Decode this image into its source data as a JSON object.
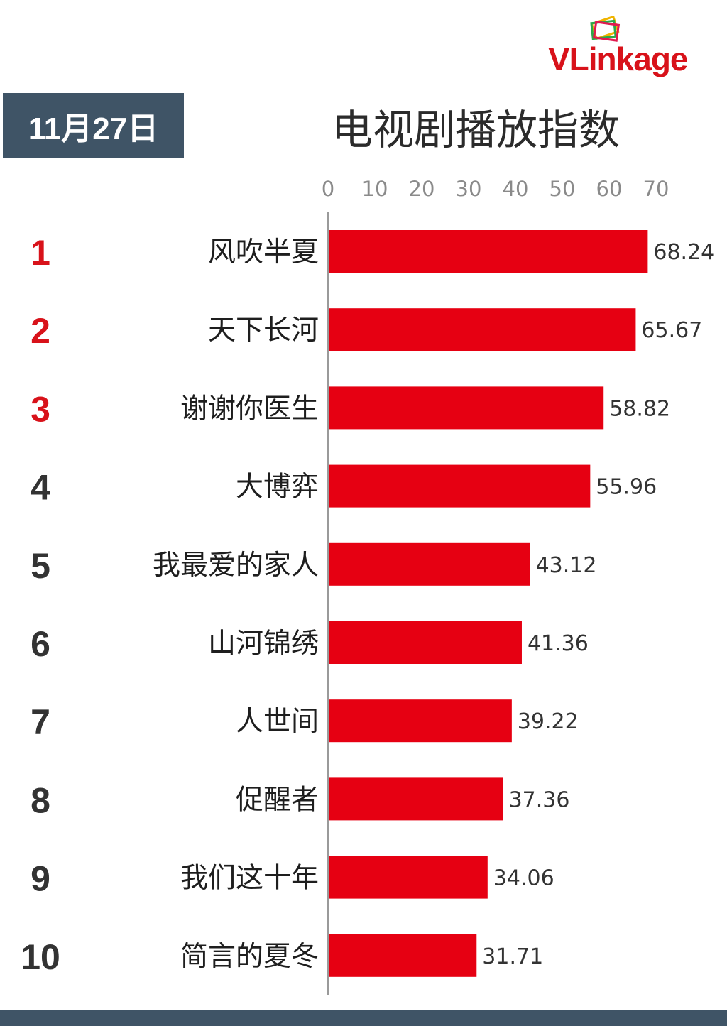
{
  "brand": {
    "name": "VLinkage",
    "colors": {
      "primary_red": "#d8121a",
      "bar_red": "#e60012",
      "slate": "#3f5466"
    }
  },
  "date": "11月27日",
  "chart_data": {
    "type": "bar",
    "orientation": "horizontal",
    "title": "电视剧播放指数",
    "ranks": [
      "1",
      "2",
      "3",
      "4",
      "5",
      "6",
      "7",
      "8",
      "9",
      "10"
    ],
    "categories": [
      "风吹半夏",
      "天下长河",
      "谢谢你医生",
      "大博弈",
      "我最爱的家人",
      "山河锦绣",
      "人世间",
      "促醒者",
      "我们这十年",
      "简言的夏冬"
    ],
    "values": [
      68.24,
      65.67,
      58.82,
      55.96,
      43.12,
      41.36,
      39.22,
      37.36,
      34.06,
      31.71
    ],
    "value_labels": [
      "68.24",
      "65.67",
      "58.82",
      "55.96",
      "43.12",
      "41.36",
      "39.22",
      "37.36",
      "34.06",
      "31.71"
    ],
    "x_ticks": [
      0,
      10,
      20,
      30,
      40,
      50,
      60,
      70
    ],
    "xlim": [
      0,
      70
    ],
    "axis_position": "top",
    "grid": false,
    "colors": {
      "bar": "#e60012",
      "top_rank": "#d8121a",
      "rank": "#333333"
    }
  }
}
